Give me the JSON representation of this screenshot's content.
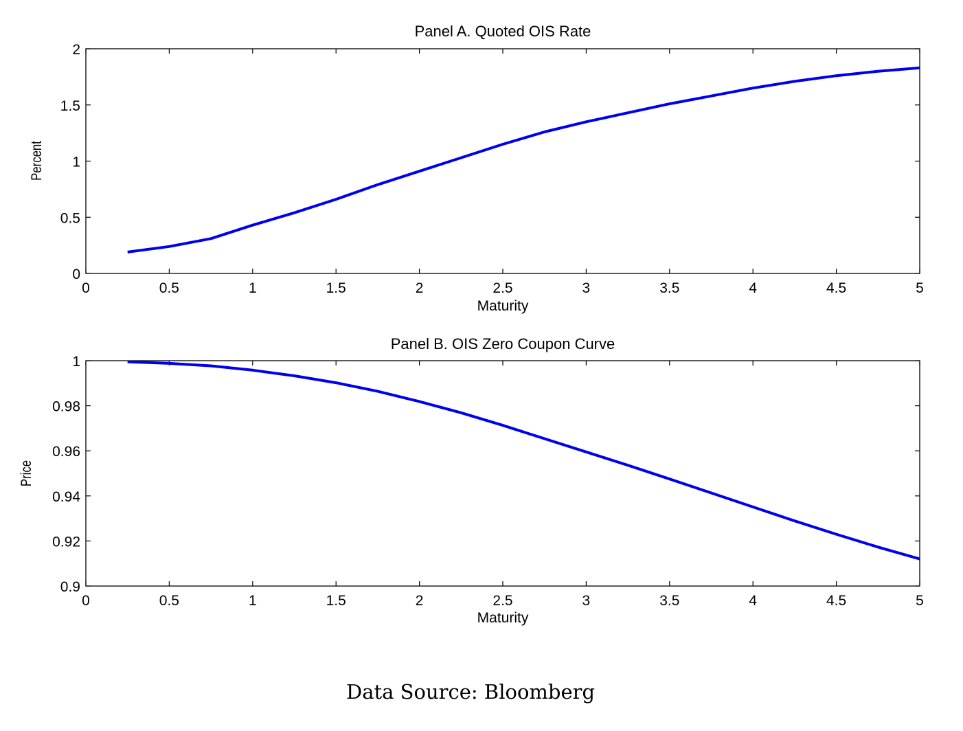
{
  "caption": "Data Source:  Bloomberg",
  "chart_data": [
    {
      "type": "line",
      "title": "Panel A. Quoted OIS Rate",
      "xlabel": "Maturity",
      "ylabel": "Percent",
      "xlim": [
        0,
        5
      ],
      "ylim": [
        0,
        2
      ],
      "xticks": [
        0,
        0.5,
        1,
        1.5,
        2,
        2.5,
        3,
        3.5,
        4,
        4.5,
        5
      ],
      "xtick_labels": [
        "0",
        "0.5",
        "1",
        "1.5",
        "2",
        "2.5",
        "3",
        "3.5",
        "4",
        "4.5",
        "5"
      ],
      "yticks": [
        0,
        0.5,
        1,
        1.5,
        2
      ],
      "ytick_labels": [
        "0",
        "0.5",
        "1",
        "1.5",
        "2"
      ],
      "grid": false,
      "line_color": "#0000ee",
      "x": [
        0.25,
        0.5,
        0.75,
        1,
        1.25,
        1.5,
        1.75,
        2,
        2.25,
        2.5,
        2.75,
        3,
        3.25,
        3.5,
        3.75,
        4,
        4.25,
        4.5,
        4.75,
        5
      ],
      "values": [
        0.19,
        0.24,
        0.31,
        0.43,
        0.54,
        0.66,
        0.79,
        0.91,
        1.03,
        1.15,
        1.26,
        1.35,
        1.43,
        1.51,
        1.58,
        1.65,
        1.71,
        1.76,
        1.8,
        1.83
      ]
    },
    {
      "type": "line",
      "title": "Panel B. OIS Zero Coupon Curve",
      "xlabel": "Maturity",
      "ylabel": "Price",
      "xlim": [
        0,
        5
      ],
      "ylim": [
        0.9,
        1
      ],
      "xticks": [
        0,
        0.5,
        1,
        1.5,
        2,
        2.5,
        3,
        3.5,
        4,
        4.5,
        5
      ],
      "xtick_labels": [
        "0",
        "0.5",
        "1",
        "1.5",
        "2",
        "2.5",
        "3",
        "3.5",
        "4",
        "4.5",
        "5"
      ],
      "yticks": [
        0.9,
        0.92,
        0.94,
        0.96,
        0.98,
        1
      ],
      "ytick_labels": [
        "0.9",
        "0.92",
        "0.94",
        "0.96",
        "0.98",
        "1"
      ],
      "grid": false,
      "line_color": "#0000ee",
      "x": [
        0.25,
        0.5,
        0.75,
        1,
        1.25,
        1.5,
        1.75,
        2,
        2.25,
        2.5,
        2.75,
        3,
        3.25,
        3.5,
        3.75,
        4,
        4.25,
        4.5,
        4.75,
        5
      ],
      "values": [
        0.9995,
        0.9988,
        0.9977,
        0.9958,
        0.9933,
        0.9902,
        0.9864,
        0.9819,
        0.9769,
        0.9713,
        0.9654,
        0.9595,
        0.9536,
        0.9475,
        0.9413,
        0.9351,
        0.9289,
        0.923,
        0.9173,
        0.912
      ]
    }
  ]
}
